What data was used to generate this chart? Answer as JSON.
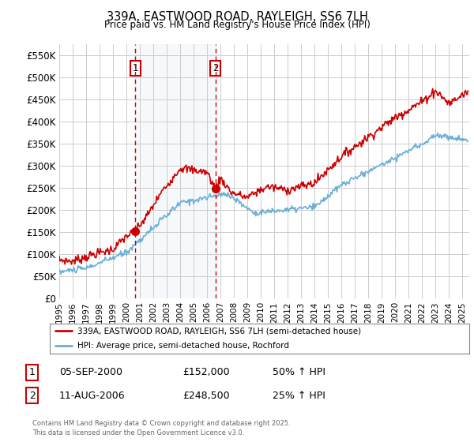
{
  "title": "339A, EASTWOOD ROAD, RAYLEIGH, SS6 7LH",
  "subtitle": "Price paid vs. HM Land Registry's House Price Index (HPI)",
  "legend_line1": "339A, EASTWOOD ROAD, RAYLEIGH, SS6 7LH (semi-detached house)",
  "legend_line2": "HPI: Average price, semi-detached house, Rochford",
  "footer": "Contains HM Land Registry data © Crown copyright and database right 2025.\nThis data is licensed under the Open Government Licence v3.0.",
  "sale1_label": "1",
  "sale1_date": "05-SEP-2000",
  "sale1_price": "£152,000",
  "sale1_pct": "50% ↑ HPI",
  "sale1_year": 2000.67,
  "sale1_value": 152000,
  "sale2_label": "2",
  "sale2_date": "11-AUG-2006",
  "sale2_price": "£248,500",
  "sale2_pct": "25% ↑ HPI",
  "sale2_year": 2006.61,
  "sale2_value": 248500,
  "ylabel_ticks": [
    "£0",
    "£50K",
    "£100K",
    "£150K",
    "£200K",
    "£250K",
    "£300K",
    "£350K",
    "£400K",
    "£450K",
    "£500K",
    "£550K"
  ],
  "ytick_values": [
    0,
    50000,
    100000,
    150000,
    200000,
    250000,
    300000,
    350000,
    400000,
    450000,
    500000,
    550000
  ],
  "ylim": [
    0,
    575000
  ],
  "xlim_min": 1995.0,
  "xlim_max": 2025.5,
  "property_color": "#cc0000",
  "hpi_color": "#6baed6",
  "shade_color": "#dce9f5",
  "vline_color": "#cc0000",
  "background_color": "#ffffff",
  "grid_color": "#cccccc",
  "sale_marker_color": "#cc0000",
  "box_color": "#cc0000"
}
